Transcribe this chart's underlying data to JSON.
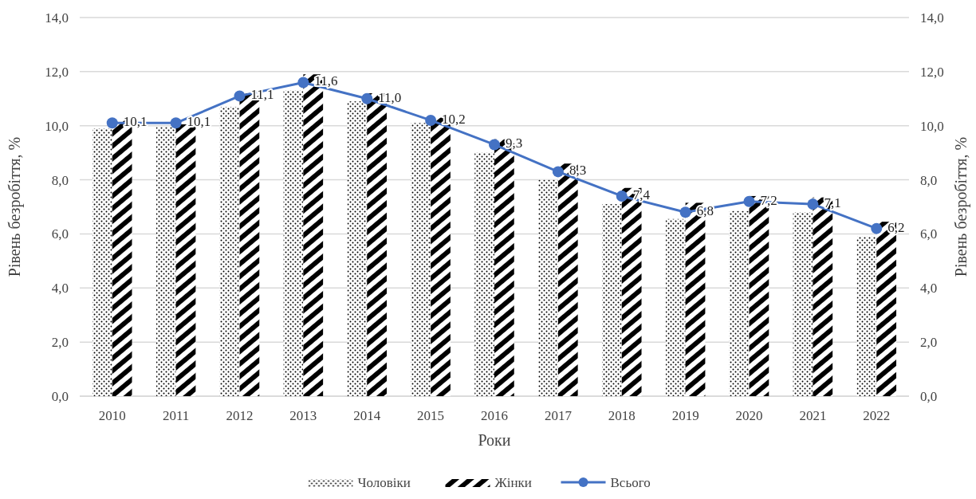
{
  "chart_data": {
    "type": "bar",
    "xlabel": "Роки",
    "ylabel": "Рівень безробіття, %",
    "y2label": "Рівень безробіття, %",
    "categories": [
      "2010",
      "2011",
      "2012",
      "2013",
      "2014",
      "2015",
      "2016",
      "2017",
      "2018",
      "2019",
      "2020",
      "2021",
      "2022"
    ],
    "series": [
      {
        "name": "Чоловіки",
        "color": "#000000",
        "values": [
          9.9,
          9.95,
          10.7,
          11.3,
          10.9,
          10.1,
          9.0,
          8.0,
          7.1,
          6.55,
          6.85,
          6.8,
          5.9
        ]
      },
      {
        "name": "Жінки",
        "color": "#000000",
        "values": [
          10.2,
          10.05,
          11.2,
          11.9,
          11.2,
          10.3,
          9.5,
          8.6,
          7.7,
          7.15,
          7.4,
          7.35,
          6.45
        ]
      },
      {
        "name": "Всього",
        "type": "line",
        "axis": "y2",
        "color": "#4472c4",
        "marker": "circle",
        "values": [
          10.1,
          10.1,
          11.1,
          11.6,
          11.0,
          10.2,
          9.3,
          8.3,
          7.4,
          6.8,
          7.2,
          7.1,
          6.2
        ],
        "value_labels": [
          "10,1",
          "10,1",
          "11,1",
          "11,6",
          "11,0",
          "10,2",
          "9,3",
          "8,3",
          "7,4",
          "6,8",
          "7,2",
          "7,1",
          "6,2"
        ]
      }
    ],
    "ylim": [
      0,
      14
    ],
    "yticks": [
      {
        "value": 0,
        "label": "0,0"
      },
      {
        "value": 2,
        "label": "2,0"
      },
      {
        "value": 4,
        "label": "4,0"
      },
      {
        "value": 6,
        "label": "6,0"
      },
      {
        "value": 8,
        "label": "8,0"
      },
      {
        "value": 10,
        "label": "10,0"
      },
      {
        "value": 12,
        "label": "12,0"
      },
      {
        "value": 14,
        "label": "14,0"
      }
    ],
    "y2lim": [
      0,
      14
    ],
    "y2ticks": [
      {
        "value": 0,
        "label": "0,0"
      },
      {
        "value": 2,
        "label": "2,0"
      },
      {
        "value": 4,
        "label": "4,0"
      },
      {
        "value": 6,
        "label": "6,0"
      },
      {
        "value": 8,
        "label": "8,0"
      },
      {
        "value": 10,
        "label": "10,0"
      },
      {
        "value": 12,
        "label": "12,0"
      },
      {
        "value": 14,
        "label": "14,0"
      }
    ],
    "grid": "y",
    "legend": "bottom"
  }
}
